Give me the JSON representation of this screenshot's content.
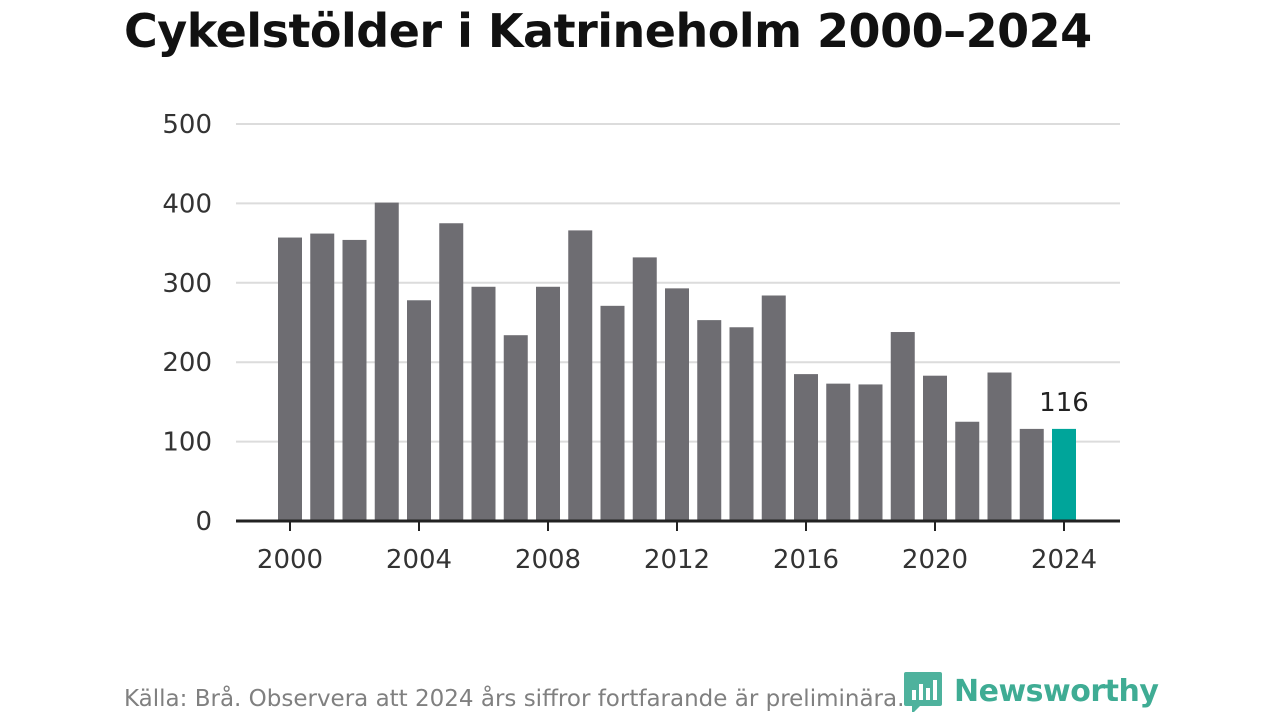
{
  "chart_data": {
    "type": "bar",
    "title": "Cykelstölder i Katrineholm 2000–2024",
    "x": [
      2000,
      2001,
      2002,
      2003,
      2004,
      2005,
      2006,
      2007,
      2008,
      2009,
      2010,
      2011,
      2012,
      2013,
      2014,
      2015,
      2016,
      2017,
      2018,
      2019,
      2020,
      2021,
      2022,
      2023,
      2024
    ],
    "values": [
      357,
      362,
      354,
      401,
      278,
      375,
      295,
      234,
      295,
      366,
      271,
      332,
      293,
      253,
      244,
      284,
      185,
      173,
      172,
      238,
      183,
      125,
      187,
      116,
      116
    ],
    "ylim": [
      0,
      500
    ],
    "yticks": [
      0,
      100,
      200,
      300,
      400,
      500
    ],
    "xticks": [
      2000,
      2004,
      2008,
      2012,
      2016,
      2020,
      2024
    ],
    "highlight": {
      "year": 2024,
      "label": "116"
    },
    "colors": {
      "bar": "#6e6d72",
      "highlight": "#00a59a",
      "grid": "#dcdcdc",
      "axis": "#222222"
    },
    "xlabel": "",
    "ylabel": "",
    "grid": true
  },
  "footer": {
    "source": "Källa: Brå. Observera att 2024 års siffror fortfarande är preliminära.",
    "brand": "Newsworthy",
    "brand_icon": "newsworthy-logo-icon"
  }
}
